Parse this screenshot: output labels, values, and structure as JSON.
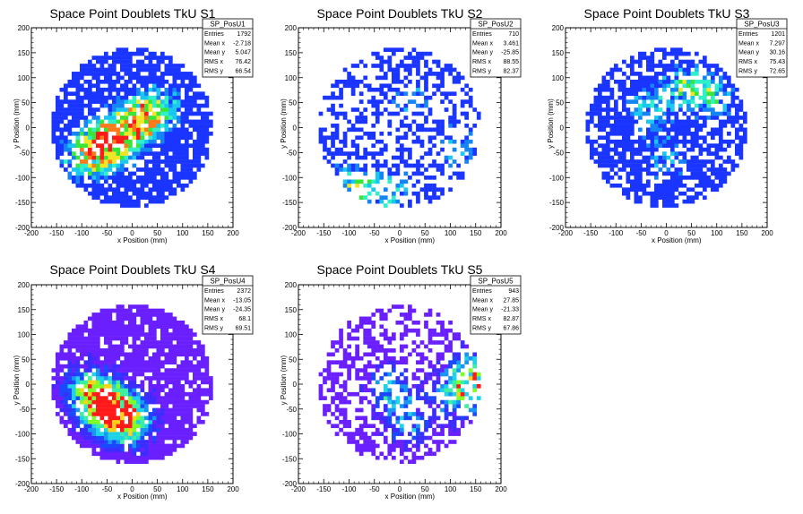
{
  "chart_data": [
    {
      "type": "heatmap",
      "title": "Space Point Doublets TkU S1",
      "xlabel": "x Position (mm)",
      "ylabel": "y Position (mm)",
      "xlim": [
        -200,
        200
      ],
      "ylim": [
        -200,
        200
      ],
      "xticks": [
        -200,
        -150,
        -100,
        -50,
        0,
        50,
        100,
        150,
        200
      ],
      "yticks": [
        -200,
        -150,
        -100,
        -50,
        0,
        50,
        100,
        150,
        200
      ],
      "palette": "blue-low",
      "stats": {
        "name": "SP_PosU1",
        "rows": [
          [
            "Entries",
            "1792"
          ],
          [
            "Mean x",
            "-2.718"
          ],
          [
            "Mean y",
            "5.047"
          ],
          [
            "RMS x",
            "76.42"
          ],
          [
            "RMS y",
            "66.54"
          ]
        ]
      },
      "seed": 11,
      "fill": 0.78,
      "hotspots": [
        [
          -60,
          -40,
          2.2
        ],
        [
          -20,
          -10,
          1.8
        ],
        [
          20,
          20,
          1.6
        ],
        [
          60,
          40,
          1.3
        ],
        [
          -100,
          -60,
          1.4
        ]
      ]
    },
    {
      "type": "heatmap",
      "title": "Space Point Doublets TkU S2",
      "xlabel": "x Position (mm)",
      "ylabel": "y Position (mm)",
      "xlim": [
        -200,
        200
      ],
      "ylim": [
        -200,
        200
      ],
      "xticks": [
        -200,
        -150,
        -100,
        -50,
        0,
        50,
        100,
        150,
        200
      ],
      "yticks": [
        -200,
        -150,
        -100,
        -50,
        0,
        50,
        100,
        150,
        200
      ],
      "palette": "blue-low",
      "stats": {
        "name": "SP_PosU2",
        "rows": [
          [
            "Entries",
            "710"
          ],
          [
            "Mean x",
            "3.461"
          ],
          [
            "Mean y",
            "-25.85"
          ],
          [
            "RMS x",
            "88.55"
          ],
          [
            "RMS y",
            "82.37"
          ]
        ]
      },
      "seed": 23,
      "fill": 0.42,
      "hotspots": [
        [
          -100,
          -120,
          1.8
        ],
        [
          -20,
          -130,
          1.4
        ],
        [
          120,
          -40,
          1.4
        ],
        [
          20,
          60,
          1.2
        ]
      ]
    },
    {
      "type": "heatmap",
      "title": "Space Point Doublets TkU S3",
      "xlabel": "x Position (mm)",
      "ylabel": "y Position (mm)",
      "xlim": [
        -200,
        200
      ],
      "ylim": [
        -200,
        200
      ],
      "xticks": [
        -200,
        -150,
        -100,
        -50,
        0,
        50,
        100,
        150,
        200
      ],
      "yticks": [
        -200,
        -150,
        -100,
        -50,
        0,
        50,
        100,
        150,
        200
      ],
      "palette": "blue-low",
      "stats": {
        "name": "SP_PosU3",
        "rows": [
          [
            "Entries",
            "1201"
          ],
          [
            "Mean x",
            "7.297"
          ],
          [
            "Mean y",
            "30.16"
          ],
          [
            "RMS x",
            "75.43"
          ],
          [
            "RMS y",
            "72.65"
          ]
        ]
      },
      "seed": 37,
      "fill": 0.66,
      "hotspots": [
        [
          40,
          80,
          1.6
        ],
        [
          -40,
          40,
          1.3
        ],
        [
          0,
          -60,
          1.2
        ],
        [
          100,
          60,
          1.2
        ]
      ]
    },
    {
      "type": "heatmap",
      "title": "Space Point Doublets TkU S4",
      "xlabel": "x Position (mm)",
      "ylabel": "y Position (mm)",
      "xlim": [
        -200,
        200
      ],
      "ylim": [
        -200,
        200
      ],
      "xticks": [
        -200,
        -150,
        -100,
        -50,
        0,
        50,
        100,
        150,
        200
      ],
      "yticks": [
        -200,
        -150,
        -100,
        -50,
        0,
        50,
        100,
        150,
        200
      ],
      "palette": "purple-low",
      "stats": {
        "name": "SP_PosU4",
        "rows": [
          [
            "Entries",
            "2372"
          ],
          [
            "Mean x",
            "-13.05"
          ],
          [
            "Mean y",
            "-24.35"
          ],
          [
            "RMS x",
            "68.1"
          ],
          [
            "RMS y",
            "69.51"
          ]
        ]
      },
      "seed": 51,
      "fill": 0.86,
      "hotspots": [
        [
          -60,
          -40,
          2.0
        ],
        [
          -30,
          -60,
          2.1
        ],
        [
          -90,
          -10,
          1.5
        ],
        [
          0,
          -80,
          1.5
        ]
      ]
    },
    {
      "type": "heatmap",
      "title": "Space Point Doublets TkU S5",
      "xlabel": "x Position (mm)",
      "ylabel": "y Position (mm)",
      "xlim": [
        -200,
        200
      ],
      "ylim": [
        -200,
        200
      ],
      "xticks": [
        -200,
        -150,
        -100,
        -50,
        0,
        50,
        100,
        150,
        200
      ],
      "yticks": [
        -200,
        -150,
        -100,
        -50,
        0,
        50,
        100,
        150,
        200
      ],
      "palette": "purple-low",
      "stats": {
        "name": "SP_PosU5",
        "rows": [
          [
            "Entries",
            "943"
          ],
          [
            "Mean x",
            "27.85"
          ],
          [
            "Mean y",
            "-21.33"
          ],
          [
            "RMS x",
            "82.87"
          ],
          [
            "RMS y",
            "67.86"
          ]
        ]
      },
      "seed": 67,
      "fill": 0.5,
      "hotspots": [
        [
          150,
          20,
          2.2
        ],
        [
          120,
          -20,
          1.6
        ],
        [
          20,
          -80,
          1.2
        ],
        [
          -20,
          -10,
          1.4
        ]
      ]
    }
  ]
}
